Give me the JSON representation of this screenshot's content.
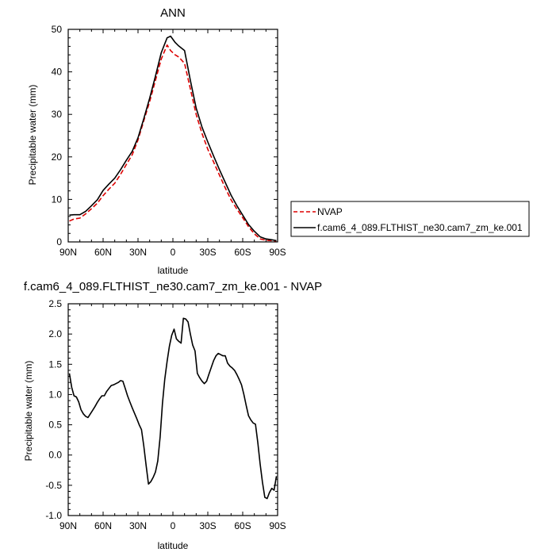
{
  "chart_data": [
    {
      "type": "line",
      "title": "ANN",
      "xlabel": "latitude",
      "ylabel": "Precipitable water (mm)",
      "xlim": [
        90,
        -90
      ],
      "ylim": [
        0,
        50
      ],
      "x_ticks": [
        90,
        60,
        30,
        0,
        -30,
        -60,
        -90
      ],
      "x_tick_labels": [
        "90N",
        "60N",
        "30N",
        "0",
        "30S",
        "60S",
        "90S"
      ],
      "y_ticks": [
        0,
        10,
        20,
        30,
        40,
        50
      ],
      "y_tick_labels": [
        "0",
        "10",
        "20",
        "30",
        "40",
        "50"
      ],
      "grid": false,
      "legend_position": "right",
      "series": [
        {
          "name": "NVAP",
          "color": "#dd0000",
          "dash": "dashed",
          "x": [
            89,
            85,
            80,
            75,
            70,
            65,
            60,
            55,
            50,
            45,
            40,
            35,
            30,
            25,
            20,
            15,
            10,
            5,
            2,
            -2,
            -5,
            -10,
            -15,
            -20,
            -25,
            -30,
            -35,
            -40,
            -45,
            -50,
            -55,
            -60,
            -65,
            -70,
            -75,
            -80,
            -85,
            -89
          ],
          "y": [
            4.9,
            5.4,
            5.6,
            6.6,
            7.8,
            9.1,
            10.9,
            12.4,
            13.8,
            15.9,
            18.2,
            20.5,
            24.0,
            28.5,
            33.0,
            38.0,
            43.0,
            46.3,
            45.0,
            44.0,
            43.5,
            42.0,
            36.0,
            30.0,
            25.5,
            21.8,
            18.8,
            15.7,
            12.7,
            9.9,
            7.7,
            5.7,
            3.6,
            1.9,
            0.7,
            0.4,
            0.3,
            0.2
          ]
        },
        {
          "name": "f.cam6_4_089.FLTHIST_ne30.cam7_zm_ke.001",
          "color": "#000000",
          "dash": "solid",
          "x": [
            89,
            85,
            80,
            75,
            70,
            65,
            60,
            55,
            50,
            45,
            40,
            35,
            30,
            25,
            20,
            15,
            10,
            5,
            2,
            -2,
            -5,
            -10,
            -15,
            -20,
            -25,
            -30,
            -35,
            -40,
            -45,
            -50,
            -55,
            -60,
            -65,
            -70,
            -75,
            -80,
            -85,
            -89
          ],
          "y": [
            6.3,
            6.4,
            6.4,
            7.2,
            8.5,
            9.9,
            12.1,
            13.6,
            15.0,
            17.0,
            19.2,
            21.3,
            24.5,
            29.0,
            33.8,
            39.0,
            44.5,
            48.0,
            48.4,
            46.9,
            46.1,
            45.0,
            38.0,
            31.5,
            27.0,
            23.5,
            20.2,
            17.0,
            14.0,
            11.0,
            8.5,
            6.3,
            4.1,
            2.5,
            1.2,
            0.7,
            0.5,
            0.3
          ]
        }
      ]
    },
    {
      "type": "line",
      "title": "f.cam6_4_089.FLTHIST_ne30.cam7_zm_ke.001 - NVAP",
      "xlabel": "latitude",
      "ylabel": "Precipitable water (mm)",
      "xlim": [
        90,
        -90
      ],
      "ylim": [
        -1.0,
        2.5
      ],
      "x_ticks": [
        90,
        60,
        30,
        0,
        -30,
        -60,
        -90
      ],
      "x_tick_labels": [
        "90N",
        "60N",
        "30N",
        "0",
        "30S",
        "60S",
        "90S"
      ],
      "y_ticks": [
        -1.0,
        -0.5,
        0.0,
        0.5,
        1.0,
        1.5,
        2.0,
        2.5
      ],
      "y_tick_labels": [
        "-1.0",
        "-0.5",
        "0.0",
        "0.5",
        "1.0",
        "1.5",
        "2.0",
        "2.5"
      ],
      "grid": false,
      "series": [
        {
          "name": "",
          "color": "#000000",
          "dash": "solid",
          "x": [
            89,
            87,
            85,
            83,
            81,
            79,
            77,
            75,
            73,
            71,
            69,
            67,
            65,
            63,
            61,
            59,
            57,
            55,
            53,
            51,
            49,
            47,
            45,
            43,
            41,
            39,
            37,
            35,
            33,
            31,
            29,
            27,
            25,
            23,
            21,
            19,
            17,
            15,
            13,
            11,
            9,
            7,
            5,
            3,
            1,
            -1,
            -3,
            -5,
            -7,
            -9,
            -11,
            -13,
            -15,
            -17,
            -19,
            -21,
            -23,
            -25,
            -27,
            -29,
            -31,
            -33,
            -35,
            -37,
            -39,
            -41,
            -43,
            -45,
            -47,
            -49,
            -51,
            -53,
            -55,
            -57,
            -59,
            -61,
            -63,
            -65,
            -67,
            -69,
            -71,
            -73,
            -75,
            -77,
            -79,
            -81,
            -83,
            -85,
            -87,
            -89
          ],
          "y": [
            1.35,
            1.12,
            0.98,
            0.96,
            0.88,
            0.75,
            0.68,
            0.64,
            0.62,
            0.68,
            0.74,
            0.8,
            0.87,
            0.93,
            0.98,
            0.98,
            1.05,
            1.1,
            1.15,
            1.16,
            1.18,
            1.2,
            1.23,
            1.22,
            1.1,
            0.98,
            0.88,
            0.78,
            0.69,
            0.6,
            0.5,
            0.42,
            0.15,
            -0.18,
            -0.48,
            -0.44,
            -0.37,
            -0.28,
            -0.1,
            0.3,
            0.85,
            1.25,
            1.55,
            1.8,
            1.98,
            2.08,
            1.92,
            1.88,
            1.85,
            2.26,
            2.25,
            2.2,
            2.0,
            1.82,
            1.72,
            1.35,
            1.28,
            1.22,
            1.18,
            1.22,
            1.34,
            1.45,
            1.56,
            1.64,
            1.68,
            1.66,
            1.64,
            1.64,
            1.52,
            1.47,
            1.44,
            1.4,
            1.33,
            1.25,
            1.16,
            1.0,
            0.82,
            0.65,
            0.58,
            0.53,
            0.51,
            0.2,
            -0.15,
            -0.45,
            -0.7,
            -0.72,
            -0.62,
            -0.55,
            -0.58,
            -0.35
          ]
        }
      ]
    }
  ]
}
